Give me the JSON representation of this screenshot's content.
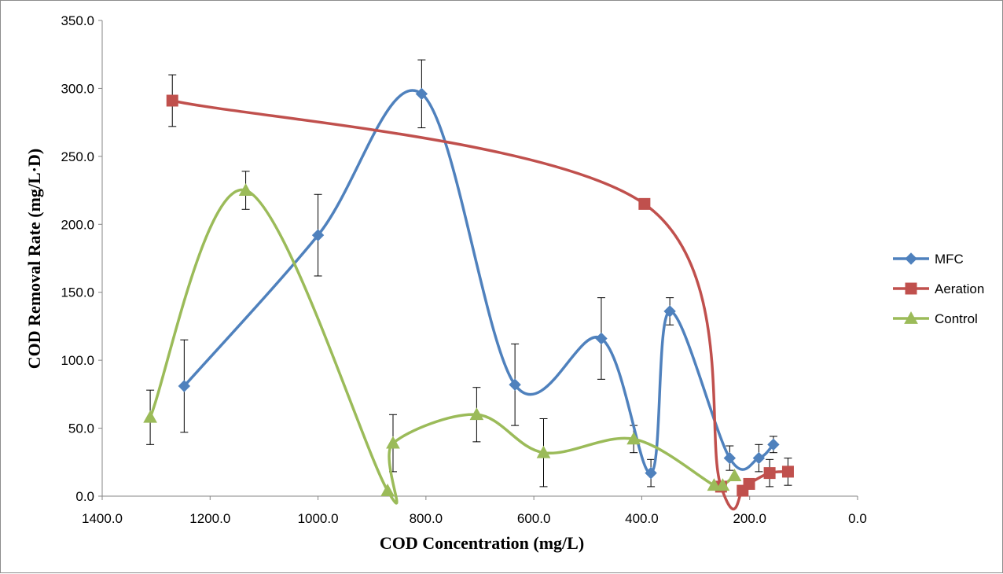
{
  "chart_data": {
    "type": "line",
    "title": "",
    "xlabel": "COD Concentration (mg/L)",
    "ylabel": "COD Removal Rate (mg/L·D)",
    "xlim": [
      1400.0,
      0.0
    ],
    "ylim": [
      0.0,
      350.0
    ],
    "x_reversed": true,
    "x_ticks": [
      "1400.0",
      "1200.0",
      "1000.0",
      "800.0",
      "600.0",
      "400.0",
      "200.0",
      "0.0"
    ],
    "y_ticks": [
      "0.0",
      "50.0",
      "100.0",
      "150.0",
      "200.0",
      "250.0",
      "300.0",
      "350.0"
    ],
    "grid": false,
    "legend_position": "right",
    "series": [
      {
        "name": "MFC",
        "color": "#4f81bd",
        "marker": "diamond",
        "points": [
          {
            "x": 1248,
            "y": 81,
            "err": 34
          },
          {
            "x": 1000,
            "y": 192,
            "err": 30
          },
          {
            "x": 808,
            "y": 296,
            "err": 25
          },
          {
            "x": 635,
            "y": 82,
            "err": 30
          },
          {
            "x": 475,
            "y": 116,
            "err": 30
          },
          {
            "x": 383,
            "y": 17,
            "err": 10
          },
          {
            "x": 348,
            "y": 136,
            "err": 10
          },
          {
            "x": 237,
            "y": 28,
            "err": 9
          },
          {
            "x": 183,
            "y": 28,
            "err": 10
          },
          {
            "x": 156,
            "y": 38,
            "err": 6
          }
        ]
      },
      {
        "name": "Aeration",
        "color": "#c0504d",
        "marker": "square",
        "points": [
          {
            "x": 1270,
            "y": 291,
            "err": 19
          },
          {
            "x": 395,
            "y": 215,
            "err": 0
          },
          {
            "x": 253,
            "y": 7,
            "err": 0
          },
          {
            "x": 213,
            "y": 4,
            "err": 3
          },
          {
            "x": 201,
            "y": 9,
            "err": 3
          },
          {
            "x": 163,
            "y": 17,
            "err": 10
          },
          {
            "x": 129,
            "y": 18,
            "err": 10
          }
        ]
      },
      {
        "name": "Control",
        "color": "#9bbb59",
        "marker": "triangle",
        "points": [
          {
            "x": 1311,
            "y": 58,
            "err": 20
          },
          {
            "x": 1134,
            "y": 225,
            "err": 14
          },
          {
            "x": 871,
            "y": 4,
            "err": 0
          },
          {
            "x": 861,
            "y": 39,
            "err": 21
          },
          {
            "x": 706,
            "y": 60,
            "err": 20
          },
          {
            "x": 582,
            "y": 32,
            "err": 25
          },
          {
            "x": 415,
            "y": 42,
            "err": 10
          },
          {
            "x": 266,
            "y": 8,
            "err": 0
          },
          {
            "x": 250,
            "y": 8,
            "err": 0
          },
          {
            "x": 228,
            "y": 15,
            "err": 0
          }
        ]
      }
    ]
  }
}
